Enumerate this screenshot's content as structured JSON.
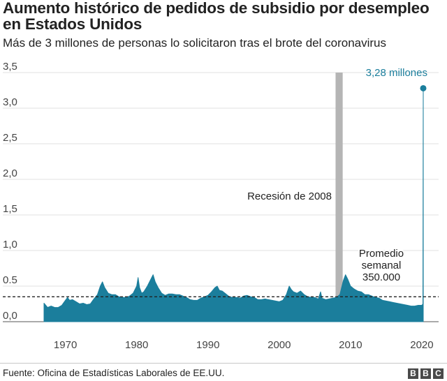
{
  "header": {
    "title": "Aumento histórico de pedidos de subsidio por desempleo en Estados Unidos",
    "subtitle": "Más de 3 millones de personas lo solicitaron tras el brote del coronavirus"
  },
  "footer": {
    "source": "Fuente: Oficina de Estadísticas Laborales de EE.UU.",
    "logo_letters": [
      "B",
      "B",
      "C"
    ]
  },
  "colors": {
    "series": "#1b7e9c",
    "recession_band": "#b5b5b5",
    "grid": "#e2e2e2",
    "text": "#222222",
    "highlight_label": "#1b7e9c"
  },
  "chart_data": {
    "type": "area",
    "title": "Aumento histórico de pedidos de subsidio por desempleo en Estados Unidos",
    "subtitle": "Más de 3 millones de personas lo solicitaron tras el brote del coronavirus",
    "xlabel": "",
    "ylabel": "",
    "xlim": [
      1967,
      2020.3
    ],
    "ylim": [
      0,
      3.5
    ],
    "grid": "horizontal",
    "x_ticks": [
      1970,
      1980,
      1990,
      2000,
      2010,
      2020
    ],
    "x_tick_labels": [
      "1970",
      "1980",
      "1990",
      "2000",
      "2010",
      "2020"
    ],
    "y_ticks": [
      0,
      0.5,
      1.0,
      1.5,
      2.0,
      2.5,
      3.0,
      3.5
    ],
    "y_tick_labels": [
      "0,0",
      "0.5",
      "1,0",
      "1,5",
      "2,0",
      "2,5",
      "3,0",
      "3,5"
    ],
    "series": [
      {
        "x": [
          1967.0,
          1967.5,
          1968.0,
          1968.5,
          1969.0,
          1969.5,
          1970.0,
          1970.3,
          1970.6,
          1971.0,
          1971.5,
          1972.0,
          1972.5,
          1973.0,
          1973.5,
          1974.0,
          1974.5,
          1974.9,
          1975.2,
          1975.5,
          1976.0,
          1976.5,
          1977.0,
          1977.5,
          1978.0,
          1978.5,
          1979.0,
          1979.5,
          1980.0,
          1980.2,
          1980.4,
          1980.7,
          1981.0,
          1981.5,
          1982.0,
          1982.3,
          1982.6,
          1983.0,
          1983.5,
          1984.0,
          1984.5,
          1985.0,
          1985.5,
          1986.0,
          1986.5,
          1987.0,
          1987.5,
          1988.0,
          1988.5,
          1989.0,
          1989.5,
          1990.0,
          1990.5,
          1991.0,
          1991.3,
          1991.6,
          1992.0,
          1992.5,
          1993.0,
          1993.5,
          1994.0,
          1994.5,
          1995.0,
          1995.5,
          1996.0,
          1996.5,
          1997.0,
          1997.5,
          1998.0,
          1998.5,
          1999.0,
          1999.5,
          2000.0,
          2000.5,
          2001.0,
          2001.4,
          2001.7,
          2002.0,
          2002.5,
          2003.0,
          2003.5,
          2004.0,
          2004.5,
          2005.0,
          2005.5,
          2005.8,
          2006.0,
          2006.5,
          2007.0,
          2007.5,
          2008.0,
          2008.5,
          2008.8,
          2009.0,
          2009.3,
          2009.6,
          2010.0,
          2010.5,
          2011.0,
          2011.5,
          2012.0,
          2012.5,
          2013.0,
          2013.5,
          2014.0,
          2014.5,
          2015.0,
          2015.5,
          2016.0,
          2016.5,
          2017.0,
          2017.5,
          2018.0,
          2018.5,
          2019.0,
          2019.5,
          2020.0,
          2020.15,
          2020.2
        ],
        "values": [
          0.26,
          0.2,
          0.22,
          0.2,
          0.2,
          0.23,
          0.3,
          0.34,
          0.3,
          0.31,
          0.28,
          0.25,
          0.26,
          0.24,
          0.25,
          0.32,
          0.38,
          0.5,
          0.56,
          0.48,
          0.4,
          0.38,
          0.38,
          0.35,
          0.34,
          0.34,
          0.36,
          0.4,
          0.5,
          0.62,
          0.48,
          0.4,
          0.42,
          0.5,
          0.6,
          0.66,
          0.56,
          0.48,
          0.4,
          0.37,
          0.39,
          0.39,
          0.38,
          0.38,
          0.36,
          0.34,
          0.31,
          0.3,
          0.3,
          0.33,
          0.35,
          0.37,
          0.42,
          0.48,
          0.5,
          0.44,
          0.43,
          0.39,
          0.35,
          0.34,
          0.34,
          0.33,
          0.36,
          0.37,
          0.35,
          0.34,
          0.31,
          0.31,
          0.32,
          0.31,
          0.3,
          0.29,
          0.28,
          0.3,
          0.38,
          0.5,
          0.45,
          0.42,
          0.4,
          0.43,
          0.38,
          0.35,
          0.34,
          0.34,
          0.32,
          0.42,
          0.33,
          0.31,
          0.32,
          0.33,
          0.34,
          0.38,
          0.5,
          0.58,
          0.66,
          0.6,
          0.5,
          0.46,
          0.43,
          0.42,
          0.38,
          0.38,
          0.36,
          0.34,
          0.33,
          0.3,
          0.29,
          0.28,
          0.27,
          0.26,
          0.25,
          0.24,
          0.23,
          0.22,
          0.22,
          0.23,
          0.23,
          0.25,
          3.28
        ]
      }
    ],
    "reference_line": {
      "value": 0.35,
      "style": "dashed",
      "label": "Promedio semanal 350.000"
    },
    "shaded_band": {
      "x_start": 2007.9,
      "x_end": 2008.9,
      "label": "Recesión de 2008"
    },
    "point_annotation": {
      "x": 2020.2,
      "y": 3.28,
      "label": "3,28 millones"
    }
  }
}
